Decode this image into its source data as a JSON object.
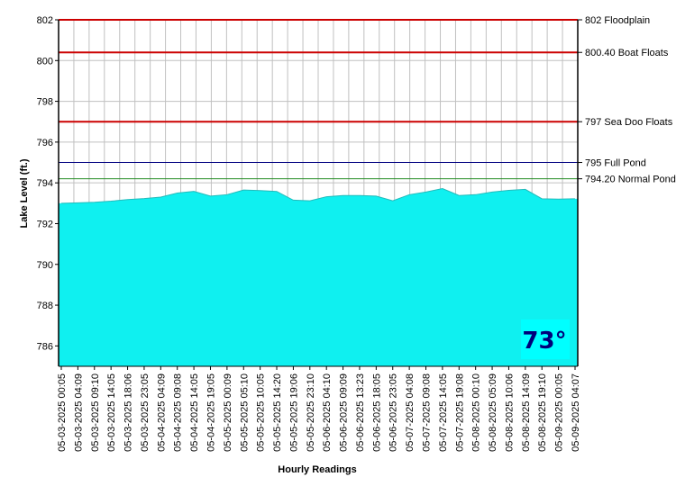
{
  "chart_data": {
    "type": "area",
    "ylabel": "Lake Level (ft.)",
    "xlabel": "Hourly Readings",
    "ylim": [
      785,
      802
    ],
    "yticks": [
      786,
      788,
      790,
      792,
      794,
      796,
      798,
      800,
      802
    ],
    "grid": true,
    "fill_color": "#00ffff",
    "categories": [
      "05-03-2025 00:05",
      "05-03-2025 04:09",
      "05-03-2025 09:10",
      "05-03-2025 14:05",
      "05-03-2025 18:06",
      "05-03-2025 23:05",
      "05-04-2025 04:09",
      "05-04-2025 09:08",
      "05-04-2025 14:05",
      "05-04-2025 19:05",
      "05-05-2025 00:09",
      "05-05-2025 05:10",
      "05-05-2025 10:05",
      "05-05-2025 14:20",
      "05-05-2025 19:06",
      "05-05-2025 23:10",
      "05-06-2025 04:10",
      "05-06-2025 09:09",
      "05-06-2025 13:23",
      "05-06-2025 18:05",
      "05-06-2025 23:05",
      "05-07-2025 04:08",
      "05-07-2025 09:08",
      "05-07-2025 14:05",
      "05-07-2025 19:08",
      "05-08-2025 00:10",
      "05-08-2025 05:09",
      "05-08-2025 10:06",
      "05-08-2025 14:09",
      "05-08-2025 19:10",
      "05-09-2025 00:05",
      "05-09-2025 04:07"
    ],
    "values": [
      793.0,
      793.02,
      793.05,
      793.1,
      793.18,
      793.23,
      793.3,
      793.5,
      793.58,
      793.35,
      793.42,
      793.65,
      793.62,
      793.58,
      793.15,
      793.12,
      793.32,
      793.38,
      793.38,
      793.35,
      793.12,
      793.42,
      793.55,
      793.72,
      793.38,
      793.42,
      793.55,
      793.63,
      793.68,
      793.22,
      793.2,
      793.22
    ],
    "reference_lines": [
      {
        "value": 802,
        "label": "802 Floodplain",
        "color": "#cc0000"
      },
      {
        "value": 800.4,
        "label": "800.40 Boat Floats",
        "color": "#cc0000"
      },
      {
        "value": 797,
        "label": "797 Sea Doo Floats",
        "color": "#cc0000"
      },
      {
        "value": 795,
        "label": "795 Full Pond",
        "color": "#000080"
      },
      {
        "value": 794.2,
        "label": "794.20 Normal Pond",
        "color": "#228b22"
      }
    ],
    "current_temp": "73°"
  }
}
